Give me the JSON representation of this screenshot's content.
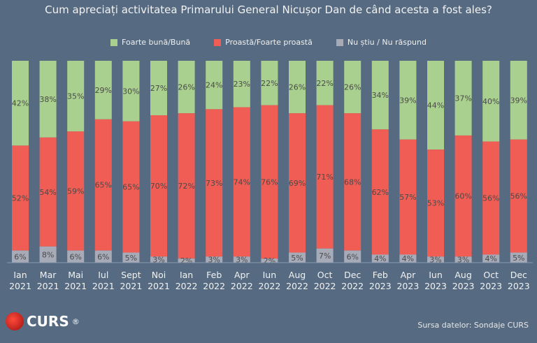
{
  "chart_data": {
    "type": "bar",
    "stacked": true,
    "title": "Cum apreciați activitatea Primarului General Nicușor Dan de când acesta a fost ales?",
    "categories": [
      [
        "Ian",
        "2021"
      ],
      [
        "Mar",
        "2021"
      ],
      [
        "Mai",
        "2021"
      ],
      [
        "Iul",
        "2021"
      ],
      [
        "Sept",
        "2021"
      ],
      [
        "Noi",
        "2021"
      ],
      [
        "Ian",
        "2022"
      ],
      [
        "Feb",
        "2022"
      ],
      [
        "Apr",
        "2022"
      ],
      [
        "Iun",
        "2022"
      ],
      [
        "Aug",
        "2022"
      ],
      [
        "Oct",
        "2022"
      ],
      [
        "Dec",
        "2022"
      ],
      [
        "Feb",
        "2023"
      ],
      [
        "Apr",
        "2023"
      ],
      [
        "Iun",
        "2023"
      ],
      [
        "Aug",
        "2023"
      ],
      [
        "Oct",
        "2023"
      ],
      [
        "Dec",
        "2023"
      ]
    ],
    "series": [
      {
        "name": "Foarte bună/Bună",
        "color": "#a9d08e",
        "values": [
          42,
          38,
          35,
          29,
          30,
          27,
          26,
          24,
          23,
          22,
          26,
          22,
          26,
          34,
          39,
          44,
          37,
          40,
          39
        ]
      },
      {
        "name": "Proastă/Foarte proastă",
        "color": "#ef5d55",
        "values": [
          52,
          54,
          59,
          65,
          65,
          70,
          72,
          73,
          74,
          76,
          69,
          71,
          68,
          62,
          57,
          53,
          60,
          56,
          56
        ]
      },
      {
        "name": "Nu știu / Nu răspund",
        "color": "#a7abb8",
        "values": [
          6,
          8,
          6,
          6,
          5,
          3,
          2,
          3,
          3,
          2,
          5,
          7,
          6,
          4,
          4,
          3,
          3,
          4,
          5
        ]
      }
    ],
    "value_suffix": "%",
    "legend_position": "top",
    "grid": false
  },
  "footer": {
    "logo_text": "CURS",
    "logo_mark": "®",
    "source": "Sursa datelor: Sondaje CURS"
  }
}
